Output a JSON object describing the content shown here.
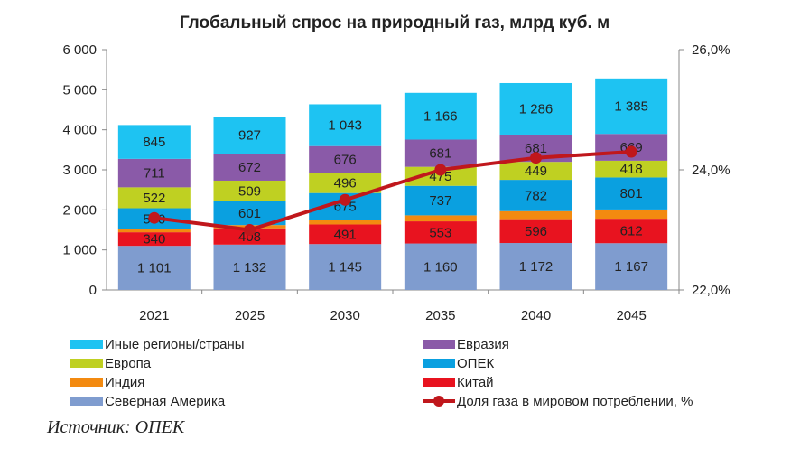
{
  "chart_data": {
    "type": "bar",
    "title": "Глобальный спрос на природный газ, млрд куб. м",
    "categories": [
      "2021",
      "2025",
      "2030",
      "2035",
      "2040",
      "2045"
    ],
    "ylim": [
      0,
      6000
    ],
    "y_ticks": [
      "0",
      "1 000",
      "2 000",
      "3 000",
      "4 000",
      "5 000",
      "6 000"
    ],
    "y2lim": [
      22.0,
      26.0
    ],
    "y2_ticks": [
      "22,0%",
      "24,0%",
      "26,0%"
    ],
    "series": [
      {
        "name": "Северная Америка",
        "values": [
          1101,
          1132,
          1145,
          1160,
          1172,
          1167
        ],
        "labels": [
          "1 101",
          "1 132",
          "1 145",
          "1 160",
          "1 172",
          "1 167"
        ],
        "color": "#7f9ccf"
      },
      {
        "name": "Китай",
        "values": [
          340,
          408,
          491,
          553,
          596,
          612
        ],
        "labels": [
          "340",
          "408",
          "491",
          "553",
          "596",
          "612"
        ],
        "color": "#e8131f"
      },
      {
        "name": "Индия",
        "values": [
          70,
          80,
          110,
          150,
          200,
          230
        ],
        "labels": [
          "",
          "",
          "",
          "",
          "",
          ""
        ],
        "color": "#f38a10"
      },
      {
        "name": "ОПЕК",
        "values": [
          530,
          601,
          675,
          737,
          782,
          801
        ],
        "labels": [
          "530",
          "601",
          "675",
          "737",
          "782",
          "801"
        ],
        "color": "#0aa0e0"
      },
      {
        "name": "Европа",
        "values": [
          522,
          509,
          496,
          475,
          449,
          418
        ],
        "labels": [
          "522",
          "509",
          "496",
          "475",
          "449",
          "418"
        ],
        "color": "#bfd022"
      },
      {
        "name": "Евразия",
        "values": [
          711,
          672,
          676,
          681,
          681,
          669
        ],
        "labels": [
          "711",
          "672",
          "676",
          "681",
          "681",
          "669"
        ],
        "color": "#8a5aa8"
      },
      {
        "name": "Иные регионы/страны",
        "values": [
          845,
          927,
          1043,
          1166,
          1286,
          1385
        ],
        "labels": [
          "845",
          "927",
          "1 043",
          "1 166",
          "1 286",
          "1 385"
        ],
        "color": "#1ec3f2"
      }
    ],
    "line_series": {
      "name": "Доля газа в мировом потреблении, %",
      "values": [
        23.2,
        23.0,
        23.5,
        24.0,
        24.2,
        24.3
      ],
      "color": "#c0171c",
      "axis": "right"
    },
    "legend_order": [
      "Иные регионы/страны",
      "Евразия",
      "Европа",
      "ОПЕК",
      "Индия",
      "Китай",
      "Северная Америка",
      "Доля газа в мировом потреблении, %"
    ],
    "legend_position": "bottom",
    "grid": false
  },
  "source": "Источник: ОПЕК"
}
